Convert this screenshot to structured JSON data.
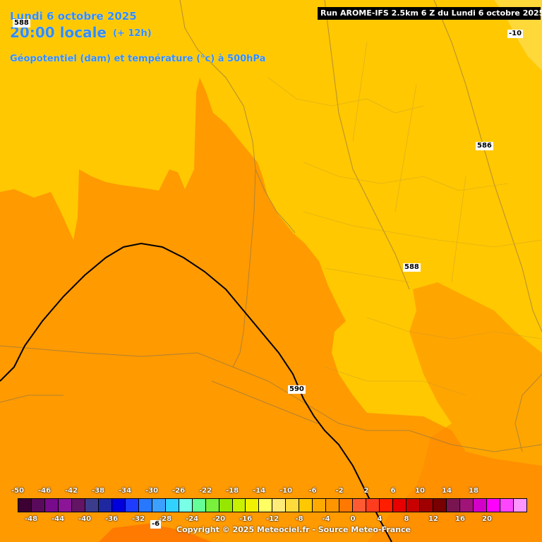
{
  "header": {
    "date": "Lundi 6 octobre 2025",
    "time": "20:00 locale",
    "lead": "(+ 12h)",
    "parameter": "Géopotentiel (dam) et température (°c) à 500hPa"
  },
  "run_box": "Run AROME-IFS 2.5km 6 Z du Lundi 6 octobre 2025",
  "contour_labels": [
    {
      "text": "588",
      "role": "top-left"
    },
    {
      "text": "586",
      "role": "east"
    },
    {
      "text": "588",
      "role": "center"
    },
    {
      "text": "590",
      "role": "south"
    },
    {
      "text": "-10",
      "role": "temp-top-right"
    },
    {
      "text": "-6",
      "role": "temp-bottom"
    }
  ],
  "legend": {
    "top_ticks": [
      "-50",
      "-46",
      "-42",
      "-38",
      "-34",
      "-30",
      "-26",
      "-22",
      "-18",
      "-14",
      "-10",
      "-6",
      "-2",
      "2",
      "6",
      "10",
      "14",
      "18"
    ],
    "bottom_ticks": [
      "-48",
      "-44",
      "-40",
      "-36",
      "-32",
      "-28",
      "-24",
      "-20",
      "-16",
      "-12",
      "-8",
      "-4",
      "0",
      "4",
      "8",
      "12",
      "16",
      "20"
    ],
    "colors": [
      "#3c0032",
      "#5a0a5a",
      "#780a8c",
      "#8c1496",
      "#641464",
      "#3c3c8c",
      "#1e28a0",
      "#0000dc",
      "#1e3cff",
      "#2878ff",
      "#3ca0ff",
      "#32d2ff",
      "#78ffe6",
      "#64ff96",
      "#78f03c",
      "#96e600",
      "#c8f000",
      "#f0f000",
      "#ffff64",
      "#ffeb78",
      "#ffdc3c",
      "#ffc800",
      "#ffaa00",
      "#ff9600",
      "#ff7800",
      "#ff5a32",
      "#ff3c1e",
      "#ff1e00",
      "#e60000",
      "#c80000",
      "#a00000",
      "#780000",
      "#781450",
      "#a0147a",
      "#d200c8",
      "#ff00ff",
      "#ff46ff",
      "#ff96ff"
    ]
  },
  "copyright": "Copyright © 2025 Meteociel.fr - Source Meteo-France"
}
